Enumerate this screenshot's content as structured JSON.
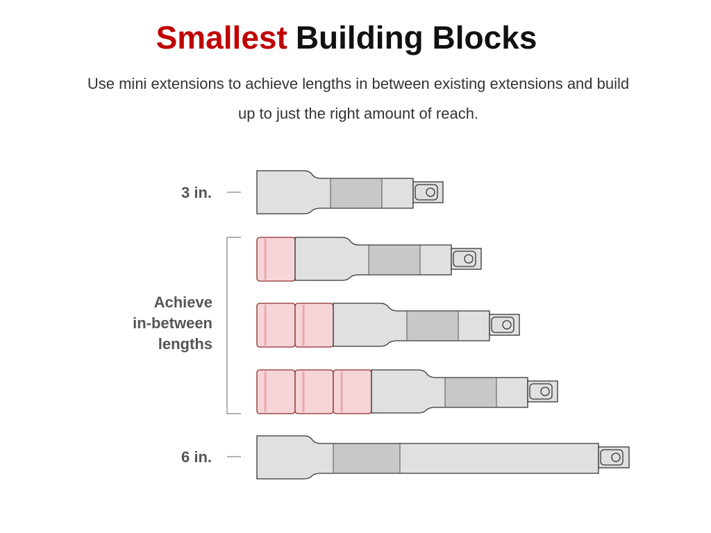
{
  "header": {
    "title_highlight": "Smallest",
    "title_rest": "Building Blocks",
    "subtitle_lines": [
      "Use mini extensions to achieve lengths in between existing extensions and build",
      "up to just the right amount of reach."
    ]
  },
  "labels": {
    "short": "3 in.",
    "middle_lines": [
      "Achieve",
      "in-between",
      "lengths"
    ],
    "long": "6 in."
  }
}
